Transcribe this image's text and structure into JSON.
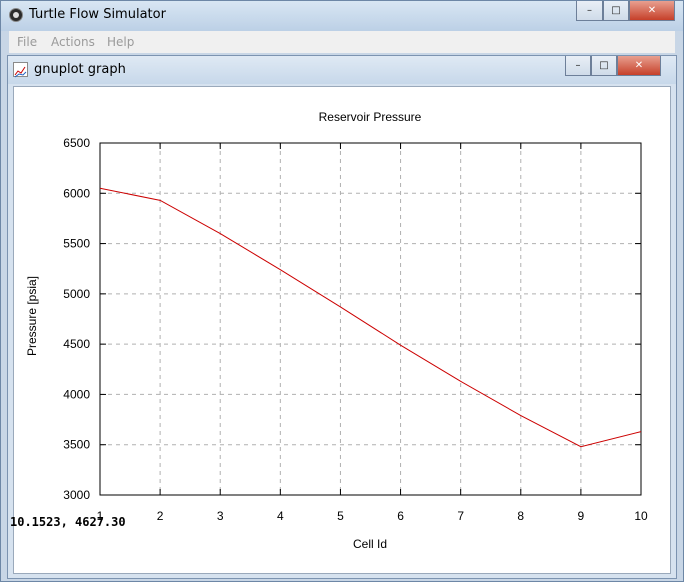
{
  "window": {
    "title": "Turtle Flow Simulator",
    "controls": {
      "minimize": "–",
      "maximize": "□",
      "close": "✕"
    }
  },
  "menu": {
    "items": [
      "File",
      "Actions",
      "Help"
    ]
  },
  "graph_window": {
    "title": "gnuplot graph",
    "controls": {
      "minimize": "–",
      "maximize": "□",
      "close": "✕"
    }
  },
  "status": {
    "coordinates": "10.1523,  4627.30"
  },
  "colors": {
    "series": "#cc0000",
    "grid": "#b0b0b0",
    "menu_disabled": "#9a9a9a"
  },
  "chart_data": {
    "type": "line",
    "title": "Reservoir Pressure",
    "xlabel": "Cell Id",
    "ylabel": "Pressure [psia]",
    "xlim": [
      1,
      10
    ],
    "ylim": [
      3000,
      6500
    ],
    "xticks": [
      1,
      2,
      3,
      4,
      5,
      6,
      7,
      8,
      9,
      10
    ],
    "yticks": [
      3000,
      3500,
      4000,
      4500,
      5000,
      5500,
      6000,
      6500
    ],
    "grid": true,
    "series": [
      {
        "x": [
          1,
          2,
          3,
          4,
          5,
          6,
          7,
          8,
          9,
          10
        ],
        "values": [
          6050,
          5930,
          5600,
          5240,
          4870,
          4490,
          4130,
          3790,
          3480,
          3630
        ]
      }
    ]
  }
}
